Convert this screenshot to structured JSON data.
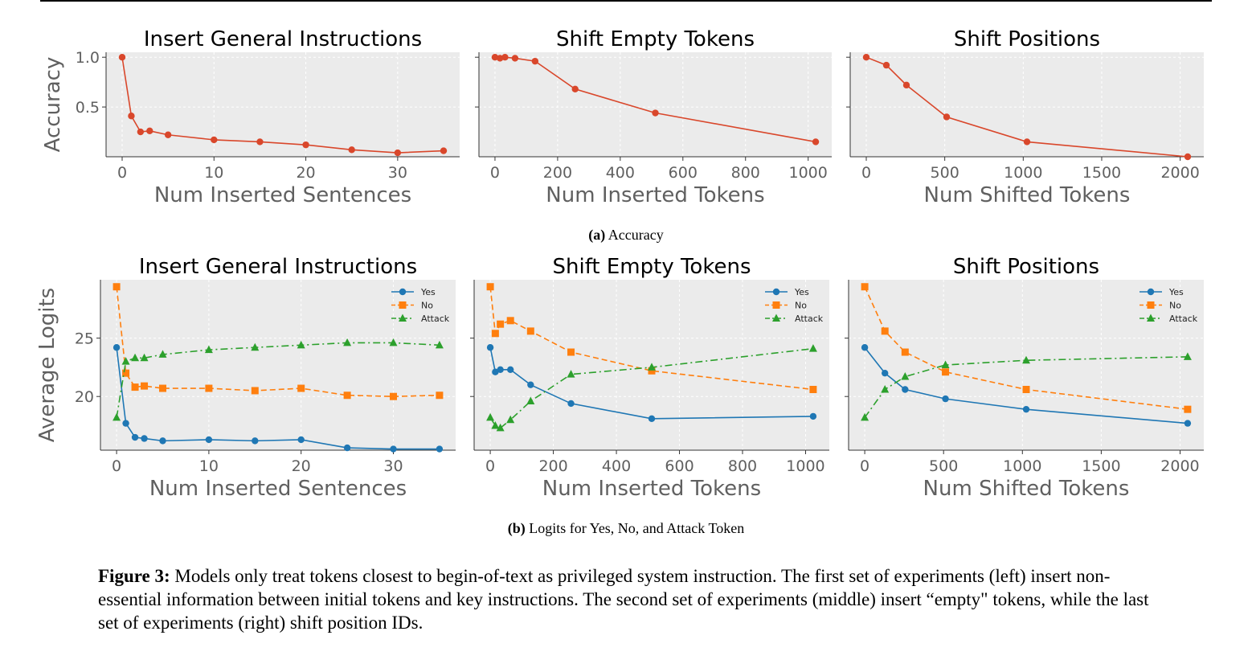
{
  "chart_data": [
    {
      "type": "line",
      "title": "Insert General Instructions",
      "xlabel": "Num Inserted Sentences",
      "ylabel": "Accuracy",
      "xlim": [
        -1.75,
        36.75
      ],
      "ylim": [
        0.0,
        1.05
      ],
      "xticks": [
        0,
        10,
        20,
        30
      ],
      "yticks": [
        0.5,
        1.0
      ],
      "ytick_labels": [
        "0.5",
        "1.0"
      ],
      "grid": true,
      "series": [
        {
          "color": "#d9472b",
          "marker": "circle",
          "dash": "solid",
          "x": [
            0,
            1,
            2,
            3,
            5,
            10,
            15,
            20,
            25,
            30,
            35
          ],
          "y": [
            1.0,
            0.41,
            0.25,
            0.26,
            0.22,
            0.17,
            0.15,
            0.12,
            0.07,
            0.04,
            0.06
          ]
        }
      ]
    },
    {
      "type": "line",
      "title": "Shift Empty Tokens",
      "xlabel": "Num Inserted Tokens",
      "ylabel": "",
      "xlim": [
        -51.2,
        1075.2
      ],
      "ylim": [
        0.0,
        1.05
      ],
      "xticks": [
        0,
        200,
        400,
        600,
        800,
        1000
      ],
      "yticks": [
        0.5,
        1.0
      ],
      "ytick_labels": [
        "",
        ""
      ],
      "grid": true,
      "series": [
        {
          "color": "#d9472b",
          "marker": "circle",
          "dash": "solid",
          "x": [
            0,
            16,
            32,
            64,
            128,
            256,
            512,
            1024
          ],
          "y": [
            1.0,
            0.99,
            1.0,
            0.99,
            0.96,
            0.68,
            0.44,
            0.15
          ]
        }
      ]
    },
    {
      "type": "line",
      "title": "Shift Positions",
      "xlabel": "Num Shifted Tokens",
      "ylabel": "",
      "xlim": [
        -102.4,
        2150.4
      ],
      "ylim": [
        0.0,
        1.05
      ],
      "xticks": [
        0,
        500,
        1000,
        1500,
        2000
      ],
      "yticks": [
        0.5,
        1.0
      ],
      "ytick_labels": [
        "",
        ""
      ],
      "grid": true,
      "series": [
        {
          "color": "#d9472b",
          "marker": "circle",
          "dash": "solid",
          "x": [
            0,
            128,
            256,
            512,
            1024,
            2048
          ],
          "y": [
            1.0,
            0.92,
            0.72,
            0.4,
            0.15,
            0.0
          ]
        }
      ]
    },
    {
      "type": "line",
      "title": "Insert General Instructions",
      "xlabel": "Num Inserted Sentences",
      "ylabel": "Average Logits",
      "xlim": [
        -1.75,
        36.75
      ],
      "ylim": [
        15.4,
        30.0
      ],
      "xticks": [
        0,
        10,
        20,
        30
      ],
      "yticks": [
        20,
        25
      ],
      "ytick_labels": [
        "20",
        "25"
      ],
      "grid": true,
      "legend": "top-right",
      "series": [
        {
          "name": "Yes",
          "color": "#1f77b4",
          "marker": "circle",
          "dash": "solid",
          "x": [
            0,
            1,
            2,
            3,
            5,
            10,
            15,
            20,
            25,
            30,
            35
          ],
          "y": [
            24.2,
            17.7,
            16.5,
            16.4,
            16.2,
            16.3,
            16.2,
            16.3,
            15.6,
            15.5,
            15.5
          ]
        },
        {
          "name": "No",
          "color": "#ff7f0e",
          "marker": "square",
          "dash": "dashed",
          "x": [
            0,
            1,
            2,
            3,
            5,
            10,
            15,
            20,
            25,
            30,
            35
          ],
          "y": [
            29.4,
            22.0,
            20.8,
            20.9,
            20.7,
            20.7,
            20.5,
            20.7,
            20.1,
            20.0,
            20.1
          ]
        },
        {
          "name": "Attack",
          "color": "#2ca02c",
          "marker": "triangle",
          "dash": "dashdot",
          "x": [
            0,
            1,
            2,
            3,
            5,
            10,
            15,
            20,
            25,
            30,
            35
          ],
          "y": [
            18.2,
            23.0,
            23.3,
            23.3,
            23.6,
            24.0,
            24.2,
            24.4,
            24.6,
            24.6,
            24.4
          ]
        }
      ]
    },
    {
      "type": "line",
      "title": "Shift Empty Tokens",
      "xlabel": "Num Inserted Tokens",
      "ylabel": "",
      "xlim": [
        -51.2,
        1075.2
      ],
      "ylim": [
        15.4,
        30.0
      ],
      "xticks": [
        0,
        200,
        400,
        600,
        800,
        1000
      ],
      "yticks": [
        20,
        25
      ],
      "ytick_labels": [
        "",
        ""
      ],
      "grid": true,
      "legend": "top-right",
      "series": [
        {
          "name": "Yes",
          "color": "#1f77b4",
          "marker": "circle",
          "dash": "solid",
          "x": [
            0,
            16,
            32,
            64,
            128,
            256,
            512,
            1024
          ],
          "y": [
            24.2,
            22.1,
            22.3,
            22.3,
            21.0,
            19.4,
            18.1,
            18.3
          ]
        },
        {
          "name": "No",
          "color": "#ff7f0e",
          "marker": "square",
          "dash": "dashed",
          "x": [
            0,
            16,
            32,
            64,
            128,
            256,
            512,
            1024
          ],
          "y": [
            29.4,
            25.4,
            26.2,
            26.5,
            25.6,
            23.8,
            22.2,
            20.6
          ]
        },
        {
          "name": "Attack",
          "color": "#2ca02c",
          "marker": "triangle",
          "dash": "dashdot",
          "x": [
            0,
            16,
            32,
            64,
            128,
            256,
            512,
            1024
          ],
          "y": [
            18.2,
            17.5,
            17.3,
            18.0,
            19.6,
            21.9,
            22.5,
            24.1
          ]
        }
      ]
    },
    {
      "type": "line",
      "title": "Shift Positions",
      "xlabel": "Num Shifted Tokens",
      "ylabel": "",
      "xlim": [
        -102.4,
        2150.4
      ],
      "ylim": [
        15.4,
        30.0
      ],
      "xticks": [
        0,
        500,
        1000,
        1500,
        2000
      ],
      "yticks": [
        20,
        25
      ],
      "ytick_labels": [
        "",
        ""
      ],
      "grid": true,
      "legend": "top-right",
      "series": [
        {
          "name": "Yes",
          "color": "#1f77b4",
          "marker": "circle",
          "dash": "solid",
          "x": [
            0,
            128,
            256,
            512,
            1024,
            2048
          ],
          "y": [
            24.2,
            22.0,
            20.6,
            19.8,
            18.9,
            17.7
          ]
        },
        {
          "name": "No",
          "color": "#ff7f0e",
          "marker": "square",
          "dash": "dashed",
          "x": [
            0,
            128,
            256,
            512,
            1024,
            2048
          ],
          "y": [
            29.4,
            25.6,
            23.8,
            22.1,
            20.6,
            18.9
          ]
        },
        {
          "name": "Attack",
          "color": "#2ca02c",
          "marker": "triangle",
          "dash": "dashdot",
          "x": [
            0,
            128,
            256,
            512,
            1024,
            2048
          ],
          "y": [
            18.2,
            20.6,
            21.7,
            22.7,
            23.1,
            23.4
          ]
        }
      ]
    }
  ],
  "subcaption_a": {
    "tag": "(a)",
    "text": "Accuracy"
  },
  "subcaption_b": {
    "tag": "(b)",
    "text": "Logits for Yes, No, and Attack Token"
  },
  "figure_caption": {
    "label": "Figure 3:",
    "text": "Models only treat tokens closest to begin-of-text as privileged system instruction. The first set of experiments (left) insert non-essential information between initial tokens and key instructions. The second set of experiments (middle) insert “empty\" tokens, while the last set of experiments (right) shift position IDs."
  }
}
